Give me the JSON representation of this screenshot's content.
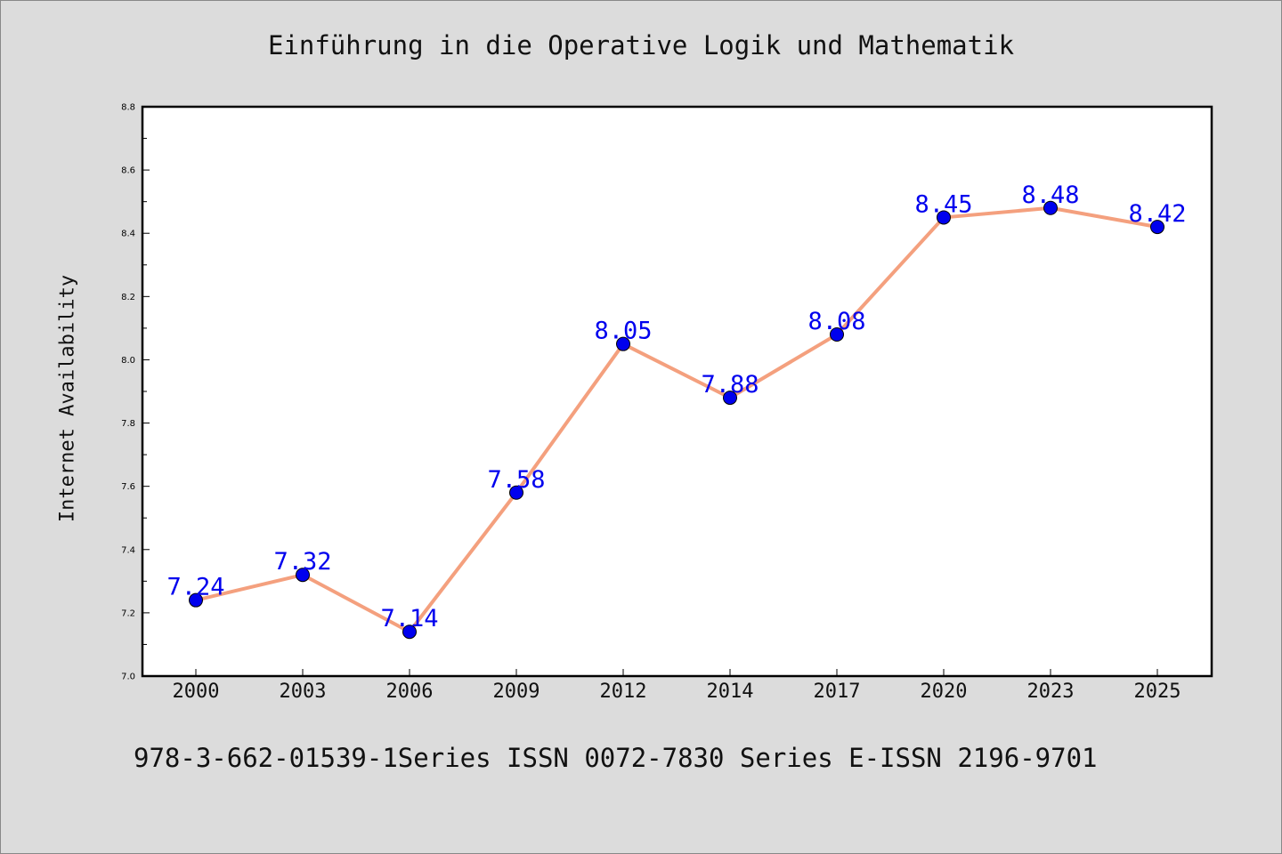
{
  "chart_data": {
    "type": "line",
    "title": "Einführung in die Operative Logik und Mathematik",
    "xlabel": "",
    "ylabel": "Internet Availability",
    "categories": [
      "2000",
      "2003",
      "2006",
      "2009",
      "2012",
      "2014",
      "2017",
      "2020",
      "2023",
      "2025"
    ],
    "series": [
      {
        "values": [
          7.24,
          7.32,
          7.14,
          7.58,
          8.05,
          7.88,
          8.08,
          8.45,
          8.48,
          8.42
        ],
        "data_labels": [
          "7.24",
          "7.32",
          "7.14",
          "7.58",
          "8.05",
          "7.88",
          "8.08",
          "8.45",
          "8.48",
          "8.42"
        ],
        "line_color": "#f4a07e",
        "marker_color": "#0000ee"
      }
    ],
    "ylim": [
      7.0,
      8.8
    ],
    "yticks": [
      "7.0",
      "7.2",
      "7.4",
      "7.6",
      "7.8",
      "8.0",
      "8.2",
      "8.4",
      "8.6",
      "8.8"
    ],
    "grid": false,
    "label_color": "#0000ee"
  },
  "footer": {
    "text": "978-3-662-01539-1Series ISSN 0072-7830 Series E-ISSN 2196-9701"
  },
  "colors": {
    "background": "#dcdcdc",
    "plot_background": "#ffffff"
  }
}
